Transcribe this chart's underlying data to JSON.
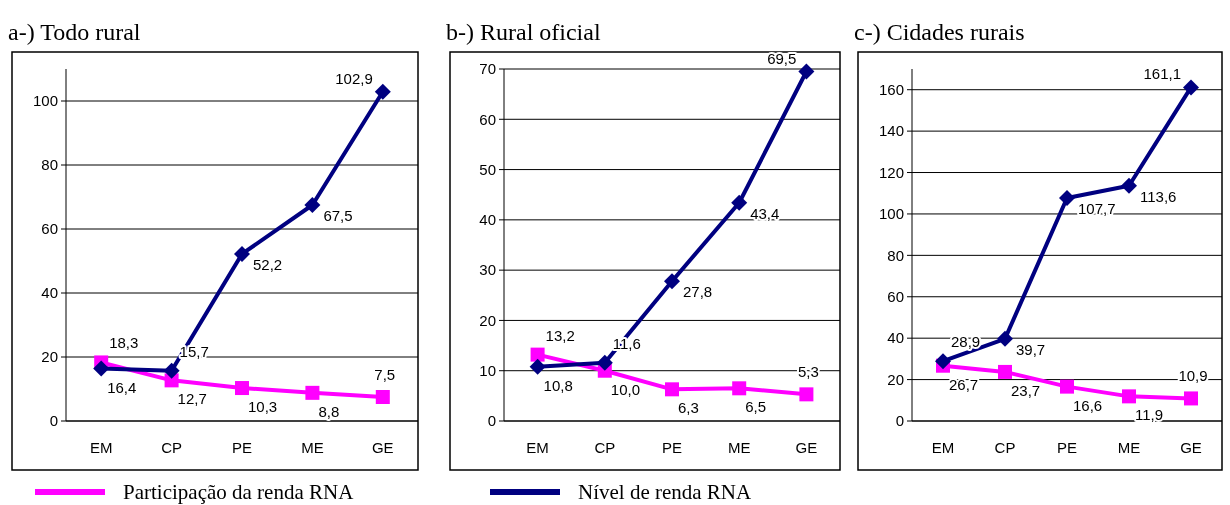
{
  "chart_data": [
    {
      "type": "line",
      "title": "a-) Todo rural",
      "categories": [
        "EM",
        "CP",
        "PE",
        "ME",
        "GE"
      ],
      "ylim": [
        0,
        110
      ],
      "yticks": [
        0,
        20,
        40,
        60,
        80,
        100
      ],
      "grid": "y",
      "legend": "bottom",
      "series": [
        {
          "name": "Participação da renda RNA",
          "color": "#ff00ff",
          "marker": "square",
          "values": [
            18.3,
            12.7,
            10.3,
            8.8,
            7.5
          ],
          "value_labels": [
            "18,3",
            "12,7",
            "10,3",
            "8,8",
            "7,5"
          ]
        },
        {
          "name": "Nível de renda RNA",
          "color": "#000080",
          "marker": "diamond",
          "values": [
            16.4,
            15.7,
            52.2,
            67.5,
            102.9
          ],
          "value_labels": [
            "16,4",
            "15,7",
            "52,2",
            "67,5",
            "102,9"
          ]
        }
      ]
    },
    {
      "type": "line",
      "title": "b-) Rural oficial",
      "categories": [
        "EM",
        "CP",
        "PE",
        "ME",
        "GE"
      ],
      "ylim": [
        0,
        70
      ],
      "yticks": [
        0,
        10,
        20,
        30,
        40,
        50,
        60,
        70
      ],
      "grid": "y",
      "series": [
        {
          "color": "#ff00ff",
          "marker": "square",
          "values": [
            13.2,
            10.0,
            6.3,
            6.5,
            5.3
          ],
          "value_labels": [
            "13,2",
            "10,0",
            "6,3",
            "6,5",
            "5,3"
          ]
        },
        {
          "color": "#000080",
          "marker": "diamond",
          "values": [
            10.8,
            11.6,
            27.8,
            43.4,
            69.5
          ],
          "value_labels": [
            "10,8",
            "11,6",
            "27,8",
            "43,4",
            "69,5"
          ]
        }
      ]
    },
    {
      "type": "line",
      "title": "c-) Cidades rurais",
      "categories": [
        "EM",
        "CP",
        "PE",
        "ME",
        "GE"
      ],
      "ylim": [
        0,
        170
      ],
      "yticks": [
        0,
        20,
        40,
        60,
        80,
        100,
        120,
        140,
        160
      ],
      "grid": "y",
      "series": [
        {
          "color": "#ff00ff",
          "marker": "square",
          "values": [
            26.7,
            23.7,
            16.6,
            11.9,
            10.9
          ],
          "value_labels": [
            "26,7",
            "23,7",
            "16,6",
            "11,9",
            "10,9"
          ]
        },
        {
          "color": "#000080",
          "marker": "diamond",
          "values": [
            28.9,
            39.7,
            107.7,
            113.6,
            161.1
          ],
          "value_labels": [
            "28,9",
            "39,7",
            "107,7",
            "113,6",
            "161,1"
          ]
        }
      ]
    }
  ]
}
